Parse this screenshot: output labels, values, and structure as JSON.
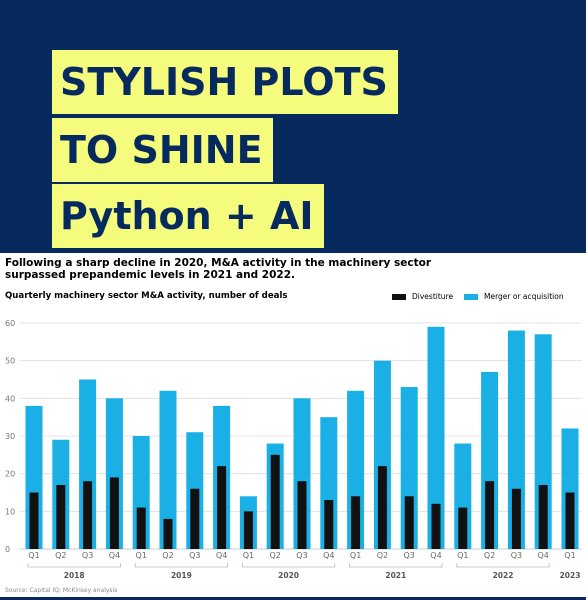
{
  "banner": {
    "line1": "STYLISH PLOTS",
    "line2": "TO SHINE",
    "line3": "Python + AI"
  },
  "subtitle": "Following a sharp decline in 2020, M&A activity in the machinery sector surpassed prepandemic levels in 2021 and 2022.",
  "source": "Source: Capital IQ; McKinsey analysis",
  "colors": {
    "banner_bg": "#062a5e",
    "highlight": "#f5fb7c",
    "merger": "#1ab0e6",
    "divestiture": "#111111"
  },
  "chart_data": {
    "type": "bar",
    "title": "Quarterly machinery sector M&A activity, number of deals",
    "ylim": [
      0,
      60
    ],
    "yticks": [
      "0",
      "10",
      "20",
      "30",
      "40",
      "50",
      "60"
    ],
    "grid": true,
    "legend_position": "top-right",
    "categories": [
      "Q1",
      "Q2",
      "Q3",
      "Q4",
      "Q1",
      "Q2",
      "Q3",
      "Q4",
      "Q1",
      "Q2",
      "Q3",
      "Q4",
      "Q1",
      "Q2",
      "Q3",
      "Q4",
      "Q1",
      "Q2",
      "Q3",
      "Q4",
      "Q1"
    ],
    "years": [
      {
        "label": "2018",
        "start": 0,
        "end": 3
      },
      {
        "label": "2019",
        "start": 4,
        "end": 7
      },
      {
        "label": "2020",
        "start": 8,
        "end": 11
      },
      {
        "label": "2021",
        "start": 12,
        "end": 15
      },
      {
        "label": "2022",
        "start": 16,
        "end": 19
      },
      {
        "label": "2023",
        "start": 20,
        "end": 20
      }
    ],
    "series": [
      {
        "name": "Merger or acquisition",
        "values": [
          38,
          29,
          45,
          40,
          30,
          42,
          31,
          38,
          14,
          28,
          40,
          35,
          42,
          50,
          43,
          59,
          28,
          47,
          58,
          57,
          32
        ]
      },
      {
        "name": "Divestiture",
        "values": [
          15,
          17,
          18,
          19,
          11,
          8,
          16,
          22,
          10,
          25,
          18,
          13,
          14,
          22,
          14,
          12,
          11,
          18,
          16,
          17,
          15
        ]
      }
    ]
  }
}
